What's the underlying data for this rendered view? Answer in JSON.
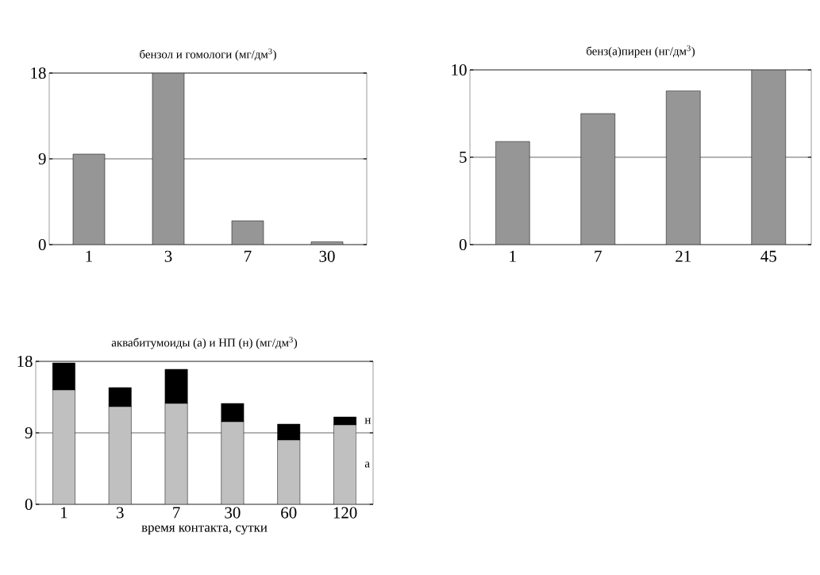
{
  "chart_data": [
    {
      "type": "bar",
      "title": "бензол и гомологи (мг/дм$^{3}$)",
      "categories": [
        "1",
        "3",
        "7",
        "30"
      ],
      "values": [
        9.5,
        18.0,
        2.5,
        0.3
      ],
      "color": "#969696",
      "ylim": [
        0,
        18
      ],
      "yticks": [
        0,
        9,
        18
      ],
      "grid": "y"
    },
    {
      "type": "bar",
      "title": "бенз(а)пирен (нг/дм$^{3}$)",
      "categories": [
        "1",
        "7",
        "21",
        "45"
      ],
      "values": [
        5.9,
        7.5,
        8.8,
        10.0
      ],
      "color": "#969696",
      "ylim": [
        0,
        10
      ],
      "yticks": [
        0,
        5,
        10
      ],
      "grid": "y"
    },
    {
      "type": "bar",
      "title": "аквабитумоиды (а) и НП (н) (мг/дм$^{3}$)",
      "xlabel": "время контакта, сутки",
      "categories": [
        "1",
        "3",
        "7",
        "30",
        "60",
        "120"
      ],
      "stacked": true,
      "ylim": [
        0,
        18
      ],
      "yticks": [
        0,
        9,
        18
      ],
      "grid": "y",
      "series": [
        {
          "name": "а",
          "color": "#c0c0c0",
          "values": [
            14.4,
            12.3,
            12.7,
            10.4,
            8.1,
            10.0
          ]
        },
        {
          "name": "н",
          "color": "#000000",
          "values": [
            3.4,
            2.4,
            4.3,
            2.3,
            2.0,
            1.0
          ]
        }
      ]
    }
  ]
}
